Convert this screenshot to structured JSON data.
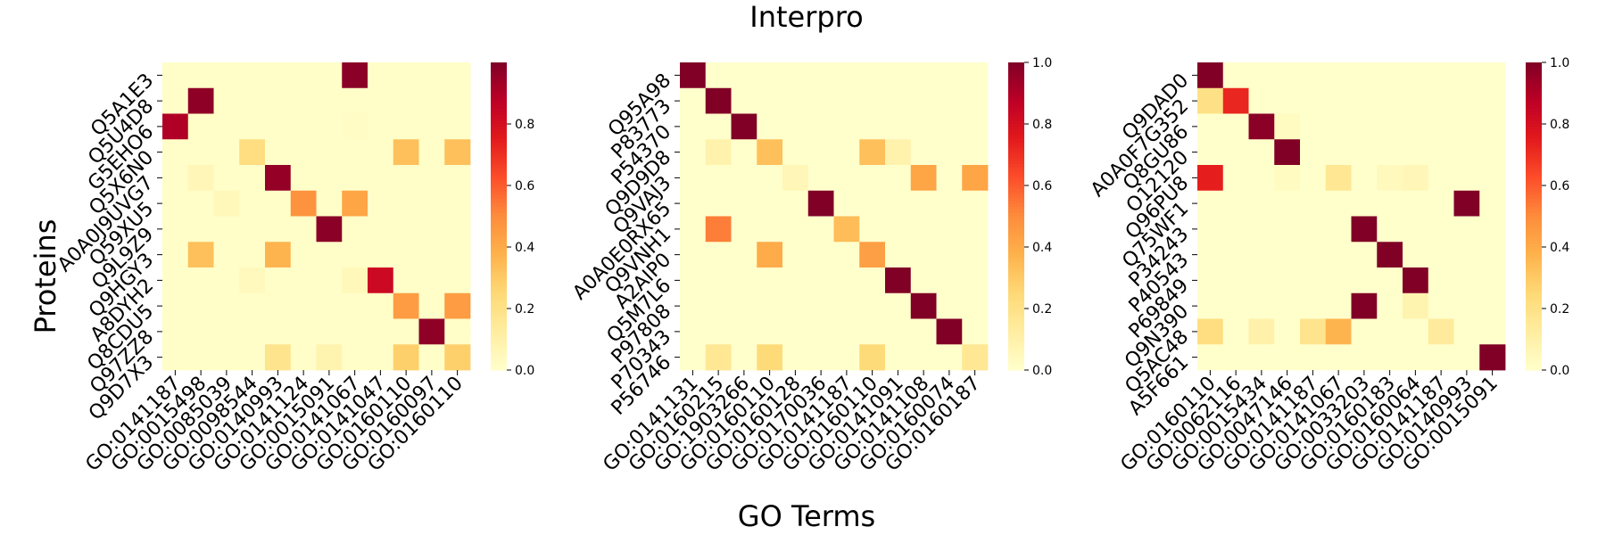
{
  "figure": {
    "title": "Interpro",
    "ylabel": "Proteins",
    "xlabel": "GO Terms"
  },
  "chart_data": [
    {
      "type": "heatmap",
      "colormap": "YlOrRd",
      "vmin": 0,
      "vmax": 1,
      "colorbar_ticks": [
        "0.0",
        "0.2",
        "0.4",
        "0.6",
        "0.8"
      ],
      "rows": [
        "Q5A1E3",
        "Q5U4D8",
        "G5EHO6",
        "Q5X6N0",
        "A0A0J9UVG7",
        "Q59XU5",
        "Q9L9Z9",
        "Q9HGY3",
        "A8DYH2",
        "Q8CDU5",
        "Q97ZZ8",
        "Q9D7X3"
      ],
      "columns": [
        "GO:0141187",
        "GO:0015498",
        "GO:0085039",
        "GO:0098544",
        "GO:0140993",
        "GO:0141124",
        "GO:0015091",
        "GO:0141067",
        "GO:0141047",
        "GO:0160110",
        "GO:0160097",
        "GO:0160110"
      ],
      "values": [
        [
          0.01,
          0.01,
          0.01,
          0.01,
          0.01,
          0.01,
          0.01,
          0.98,
          0.01,
          0.01,
          0.01,
          0.01
        ],
        [
          0.01,
          0.97,
          0.01,
          0.01,
          0.01,
          0.01,
          0.01,
          0.01,
          0.01,
          0.01,
          0.01,
          0.01
        ],
        [
          0.9,
          0.01,
          0.01,
          0.01,
          0.01,
          0.01,
          0.01,
          0.02,
          0.01,
          0.01,
          0.01,
          0.01
        ],
        [
          0.01,
          0.01,
          0.01,
          0.22,
          0.01,
          0.01,
          0.01,
          0.01,
          0.01,
          0.33,
          0.01,
          0.33
        ],
        [
          0.01,
          0.06,
          0.01,
          0.01,
          0.96,
          0.01,
          0.01,
          0.01,
          0.01,
          0.01,
          0.01,
          0.01
        ],
        [
          0.01,
          0.01,
          0.05,
          0.01,
          0.01,
          0.48,
          0.01,
          0.42,
          0.01,
          0.01,
          0.01,
          0.01
        ],
        [
          0.01,
          0.01,
          0.01,
          0.01,
          0.01,
          0.01,
          0.98,
          0.01,
          0.01,
          0.01,
          0.01,
          0.01
        ],
        [
          0.01,
          0.33,
          0.01,
          0.01,
          0.37,
          0.01,
          0.01,
          0.01,
          0.01,
          0.01,
          0.01,
          0.01
        ],
        [
          0.01,
          0.01,
          0.01,
          0.04,
          0.01,
          0.01,
          0.01,
          0.05,
          0.83,
          0.01,
          0.01,
          0.01
        ],
        [
          0.01,
          0.01,
          0.01,
          0.01,
          0.01,
          0.01,
          0.01,
          0.01,
          0.01,
          0.45,
          0.01,
          0.45
        ],
        [
          0.01,
          0.01,
          0.01,
          0.01,
          0.01,
          0.01,
          0.01,
          0.01,
          0.01,
          0.01,
          0.97,
          0.01
        ],
        [
          0.01,
          0.01,
          0.01,
          0.01,
          0.18,
          0.01,
          0.08,
          0.01,
          0.01,
          0.28,
          0.01,
          0.28
        ]
      ]
    },
    {
      "type": "heatmap",
      "colormap": "YlOrRd",
      "vmin": 0,
      "vmax": 1,
      "colorbar_ticks": [
        "0.0",
        "0.2",
        "0.4",
        "0.6",
        "0.8",
        "1.0"
      ],
      "rows": [
        "Q95A98",
        "P83773",
        "P54370",
        "Q9D9D8",
        "Q9VAJ3",
        "A0A0E0RX65",
        "Q9VNH1",
        "A2AIP0",
        "Q5M7L6",
        "P97808",
        "P70343",
        "P56746"
      ],
      "columns": [
        "GO:0141131",
        "GO:0160215",
        "GO:1903266",
        "GO:0160110",
        "GO:0160128",
        "GO:0170036",
        "GO:0141187",
        "GO:0160110",
        "GO:0141091",
        "GO:0141108",
        "GO:0160074",
        "GO:0160187"
      ],
      "values": [
        [
          1.0,
          0.0,
          0.0,
          0.0,
          0.0,
          0.0,
          0.0,
          0.0,
          0.0,
          0.0,
          0.0,
          0.0
        ],
        [
          0.0,
          1.0,
          0.0,
          0.0,
          0.0,
          0.0,
          0.0,
          0.0,
          0.0,
          0.0,
          0.0,
          0.0
        ],
        [
          0.0,
          0.0,
          1.0,
          0.0,
          0.0,
          0.0,
          0.0,
          0.0,
          0.0,
          0.0,
          0.0,
          0.0
        ],
        [
          0.0,
          0.09,
          0.0,
          0.33,
          0.0,
          0.0,
          0.0,
          0.33,
          0.09,
          0.0,
          0.0,
          0.0
        ],
        [
          0.0,
          0.0,
          0.0,
          0.0,
          0.06,
          0.0,
          0.0,
          0.0,
          0.0,
          0.42,
          0.0,
          0.42
        ],
        [
          0.0,
          0.0,
          0.0,
          0.0,
          0.0,
          1.0,
          0.0,
          0.0,
          0.0,
          0.0,
          0.0,
          0.0
        ],
        [
          0.0,
          0.53,
          0.0,
          0.0,
          0.0,
          0.0,
          0.34,
          0.0,
          0.0,
          0.0,
          0.0,
          0.0
        ],
        [
          0.0,
          0.0,
          0.0,
          0.4,
          0.0,
          0.0,
          0.0,
          0.44,
          0.0,
          0.0,
          0.0,
          0.0
        ],
        [
          0.0,
          0.0,
          0.0,
          0.0,
          0.0,
          0.0,
          0.0,
          0.0,
          1.0,
          0.0,
          0.0,
          0.0
        ],
        [
          0.0,
          0.0,
          0.0,
          0.0,
          0.0,
          0.0,
          0.0,
          0.0,
          0.0,
          1.0,
          0.0,
          0.0
        ],
        [
          0.0,
          0.0,
          0.0,
          0.0,
          0.0,
          0.0,
          0.0,
          0.0,
          0.0,
          0.0,
          1.0,
          0.0
        ],
        [
          0.0,
          0.16,
          0.0,
          0.24,
          0.0,
          0.0,
          0.0,
          0.24,
          0.0,
          0.0,
          0.0,
          0.16
        ]
      ]
    },
    {
      "type": "heatmap",
      "colormap": "YlOrRd",
      "vmin": 0,
      "vmax": 1,
      "colorbar_ticks": [
        "0.0",
        "0.2",
        "0.4",
        "0.6",
        "0.8",
        "1.0"
      ],
      "rows": [
        "Q9DAD0",
        "A0A0F7G352",
        "Q8GU86",
        "O12120",
        "Q96PU8",
        "Q75WF1",
        "P34243",
        "P40543",
        "P69849",
        "Q9N390",
        "Q5AC48",
        "A5F661"
      ],
      "columns": [
        "GO:0160110",
        "GO:0062116",
        "GO:0015434",
        "GO:0047146",
        "GO:0141187",
        "GO:0141067",
        "GO:0033203",
        "GO:0160183",
        "GO:0160064",
        "GO:0141187",
        "GO:0140993",
        "GO:0015091"
      ],
      "values": [
        [
          1.0,
          0.0,
          0.0,
          0.0,
          0.0,
          0.0,
          0.0,
          0.0,
          0.0,
          0.0,
          0.0,
          0.0
        ],
        [
          0.2,
          0.72,
          0.0,
          0.0,
          0.0,
          0.0,
          0.0,
          0.0,
          0.0,
          0.0,
          0.0,
          0.0
        ],
        [
          0.0,
          0.0,
          0.98,
          0.03,
          0.0,
          0.0,
          0.0,
          0.0,
          0.0,
          0.0,
          0.0,
          0.0
        ],
        [
          0.0,
          0.0,
          0.0,
          1.0,
          0.0,
          0.0,
          0.0,
          0.0,
          0.0,
          0.0,
          0.0,
          0.0
        ],
        [
          0.74,
          0.0,
          0.0,
          0.03,
          0.0,
          0.16,
          0.0,
          0.04,
          0.06,
          0.0,
          0.0,
          0.0
        ],
        [
          0.0,
          0.0,
          0.0,
          0.0,
          0.0,
          0.0,
          0.0,
          0.0,
          0.0,
          0.0,
          1.0,
          0.0
        ],
        [
          0.0,
          0.0,
          0.0,
          0.0,
          0.0,
          0.0,
          1.0,
          0.0,
          0.0,
          0.0,
          0.0,
          0.0
        ],
        [
          0.0,
          0.0,
          0.0,
          0.0,
          0.0,
          0.0,
          0.0,
          1.0,
          0.0,
          0.0,
          0.0,
          0.0
        ],
        [
          0.0,
          0.0,
          0.0,
          0.0,
          0.0,
          0.0,
          0.0,
          0.0,
          1.0,
          0.0,
          0.0,
          0.0
        ],
        [
          0.0,
          0.0,
          0.0,
          0.0,
          0.0,
          0.0,
          1.0,
          0.0,
          0.08,
          0.0,
          0.0,
          0.0
        ],
        [
          0.22,
          0.0,
          0.1,
          0.0,
          0.18,
          0.37,
          0.0,
          0.0,
          0.0,
          0.14,
          0.0,
          0.0
        ],
        [
          0.0,
          0.0,
          0.0,
          0.0,
          0.0,
          0.0,
          0.0,
          0.0,
          0.0,
          0.0,
          0.0,
          1.0
        ]
      ]
    }
  ]
}
